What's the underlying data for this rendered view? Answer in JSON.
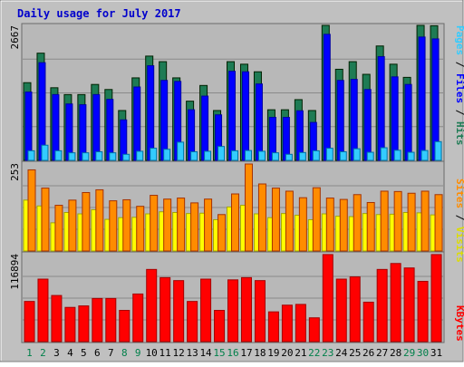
{
  "chart_data": [
    {
      "type": "bar",
      "title": "Daily usage for July 2017",
      "categories": [
        "1",
        "2",
        "3",
        "4",
        "5",
        "6",
        "7",
        "8",
        "9",
        "10",
        "11",
        "12",
        "13",
        "14",
        "15",
        "16",
        "17",
        "18",
        "19",
        "20",
        "21",
        "22",
        "23",
        "24",
        "25",
        "26",
        "27",
        "28",
        "29",
        "30",
        "31"
      ],
      "weekend_days": [
        "1",
        "2",
        "8",
        "9",
        "15",
        "16",
        "22",
        "23",
        "29",
        "30"
      ],
      "ymax": 2667,
      "ymax_label": "2667",
      "legend": [
        "Pages",
        "Files",
        "Hits"
      ],
      "series": [
        {
          "name": "Hits",
          "color": "#1e7b54",
          "values": [
            1535,
            2118,
            1435,
            1300,
            1300,
            1500,
            1400,
            985,
            1630,
            2060,
            1950,
            1630,
            1170,
            1480,
            985,
            1950,
            1900,
            1750,
            1000,
            1000,
            1200,
            985,
            2667,
            1800,
            1950,
            1700,
            2260,
            1900,
            1640,
            2667,
            2660
          ]
        },
        {
          "name": "Files",
          "color": "#0000ff",
          "values": [
            1350,
            1930,
            1300,
            1115,
            1100,
            1300,
            1205,
            800,
            1450,
            1870,
            1580,
            1560,
            1000,
            1270,
            900,
            1760,
            1750,
            1510,
            850,
            850,
            980,
            750,
            2490,
            1580,
            1600,
            1400,
            2050,
            1650,
            1500,
            2437,
            2400
          ]
        },
        {
          "name": "Pages",
          "color": "#33ccff",
          "values": [
            190,
            300,
            190,
            150,
            150,
            170,
            150,
            120,
            180,
            240,
            220,
            360,
            170,
            180,
            275,
            190,
            195,
            180,
            150,
            120,
            155,
            190,
            240,
            170,
            230,
            160,
            250,
            200,
            160,
            195,
            370
          ]
        }
      ]
    },
    {
      "type": "bar",
      "ymax": 253,
      "ymax_label": "253",
      "legend": [
        "Sites",
        "Visits"
      ],
      "series": [
        {
          "name": "Visits",
          "color": "#ffff00",
          "values": [
            148,
            131,
            82,
            112,
            108,
            120,
            92,
            97,
            98,
            108,
            114,
            112,
            109,
            110,
            91,
            128,
            133,
            108,
            97,
            109,
            104,
            91,
            108,
            101,
            100,
            109,
            106,
            107,
            112,
            111,
            105
          ]
        },
        {
          "name": "Sites",
          "color": "#ff8c00",
          "values": [
            236,
            183,
            133,
            148,
            170,
            178,
            146,
            149,
            130,
            162,
            151,
            154,
            140,
            151,
            106,
            166,
            253,
            195,
            183,
            174,
            155,
            184,
            154,
            150,
            164,
            141,
            174,
            173,
            168,
            174,
            164
          ]
        }
      ]
    },
    {
      "type": "bar",
      "ymax": 116894,
      "ymax_label": "116894",
      "legend": [
        "KBytes"
      ],
      "series": [
        {
          "name": "KBytes",
          "color": "#ff0000",
          "values": [
            54000,
            84000,
            62000,
            46000,
            48000,
            58000,
            58000,
            42000,
            64000,
            97000,
            86000,
            82000,
            54000,
            84000,
            42000,
            83000,
            86000,
            82000,
            40000,
            49000,
            50000,
            32000,
            117000,
            84000,
            87000,
            53000,
            97000,
            105000,
            99000,
            81000,
            117000
          ]
        }
      ]
    }
  ]
}
